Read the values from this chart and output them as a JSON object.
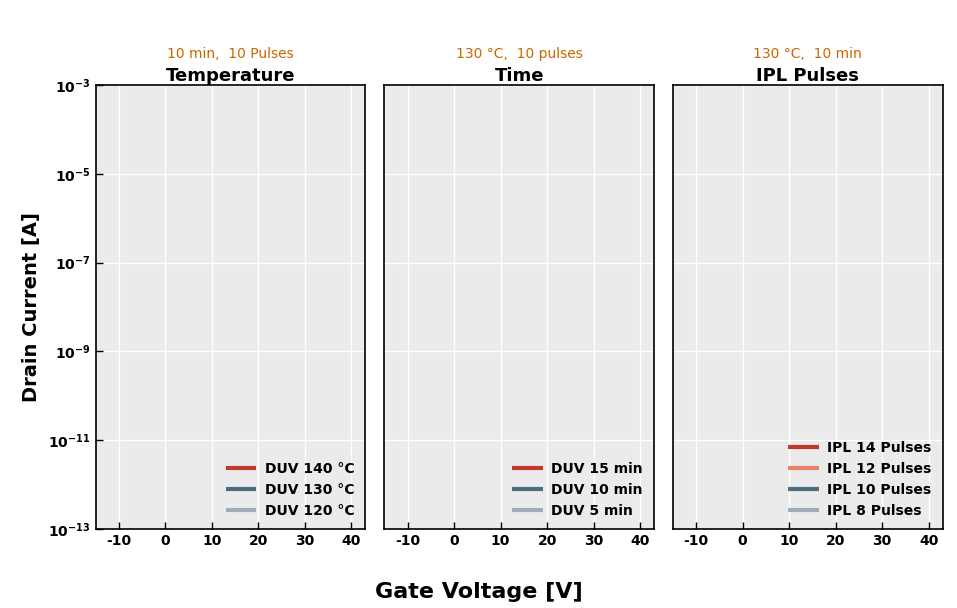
{
  "subplot_titles": [
    "Temperature",
    "Time",
    "IPL Pulses"
  ],
  "subplot_subtitles": [
    "10 min,  10 Pulses",
    "130 °C,  10 pulses",
    "130 °C,  10 min"
  ],
  "xlabel": "Gate Voltage [V]",
  "ylabel": "Drain Current [A]",
  "xlim": [
    -15,
    43
  ],
  "xticks": [
    -10,
    0,
    10,
    20,
    30,
    40
  ],
  "ylim": [
    1e-13,
    0.001
  ],
  "plot_bg_color": "#ebebeb",
  "grid_color": "#ffffff",
  "legend1": {
    "labels": [
      "DUV 140 °C",
      "DUV 130 °C",
      "DUV 120 °C"
    ],
    "colors": [
      "#c0392b",
      "#4d6e80",
      "#a0adb8"
    ]
  },
  "legend2": {
    "labels": [
      "DUV 15 min",
      "DUV 10 min",
      "DUV 5 min"
    ],
    "colors": [
      "#c0392b",
      "#4d6e80",
      "#a0adb8"
    ]
  },
  "legend3": {
    "labels": [
      "IPL 14 Pulses",
      "IPL 12 Pulses",
      "IPL 10 Pulses",
      "IPL 8 Pulses"
    ],
    "colors": [
      "#c0392b",
      "#e8836a",
      "#4d6e80",
      "#a0adb8"
    ]
  },
  "title_fontsize": 13,
  "subtitle_fontsize": 10,
  "axis_label_fontsize": 14,
  "tick_fontsize": 10,
  "legend_fontsize": 10,
  "linewidth": 3,
  "subtitle_color": "#cc6600"
}
